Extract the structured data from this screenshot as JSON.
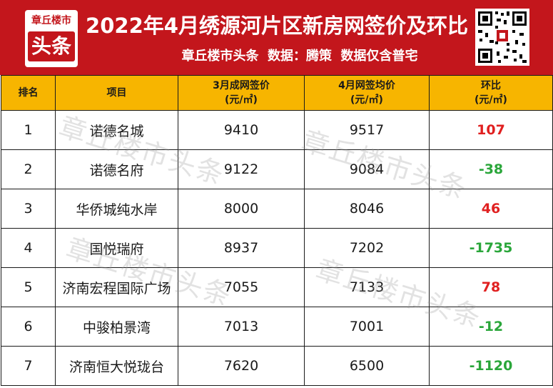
{
  "header": {
    "logo_top": "章丘楼市",
    "logo_bottom": "头条",
    "title": "2022年4月绣源河片区新房网签价及环比",
    "subtitle": "章丘楼市头条  数据：腾策  数据仅含普宅",
    "bg_color": "#c3161c"
  },
  "table": {
    "columns": [
      {
        "label": "排名",
        "unit": ""
      },
      {
        "label": "项目",
        "unit": ""
      },
      {
        "label": "3月成网签价",
        "unit": "(元/㎡)"
      },
      {
        "label": "4月网签均价",
        "unit": "(元/㎡)"
      },
      {
        "label": "环比",
        "unit": "(元/㎡)"
      }
    ],
    "rows": [
      {
        "rank": "1",
        "project": "诺德名城",
        "march": "9410",
        "april": "9517",
        "change": "107",
        "trend": "up"
      },
      {
        "rank": "2",
        "project": "诺德名府",
        "march": "9122",
        "april": "9084",
        "change": "-38",
        "trend": "down"
      },
      {
        "rank": "3",
        "project": "华侨城纯水岸",
        "march": "8000",
        "april": "8046",
        "change": "46",
        "trend": "up"
      },
      {
        "rank": "4",
        "project": "国悦瑞府",
        "march": "8937",
        "april": "7202",
        "change": "-1735",
        "trend": "down"
      },
      {
        "rank": "5",
        "project": "济南宏程国际广场",
        "march": "7055",
        "april": "7133",
        "change": "78",
        "trend": "up"
      },
      {
        "rank": "6",
        "project": "中骏柏景湾",
        "march": "7013",
        "april": "7001",
        "change": "-12",
        "trend": "down"
      },
      {
        "rank": "7",
        "project": "济南恒大悦珑台",
        "march": "7620",
        "april": "6500",
        "change": "-1120",
        "trend": "down"
      }
    ],
    "header_color": "#f7b500",
    "up_color": "#e02020",
    "down_color": "#2aa63a"
  },
  "watermark": "章丘楼市头条",
  "qr_icon": "qr-code-icon"
}
